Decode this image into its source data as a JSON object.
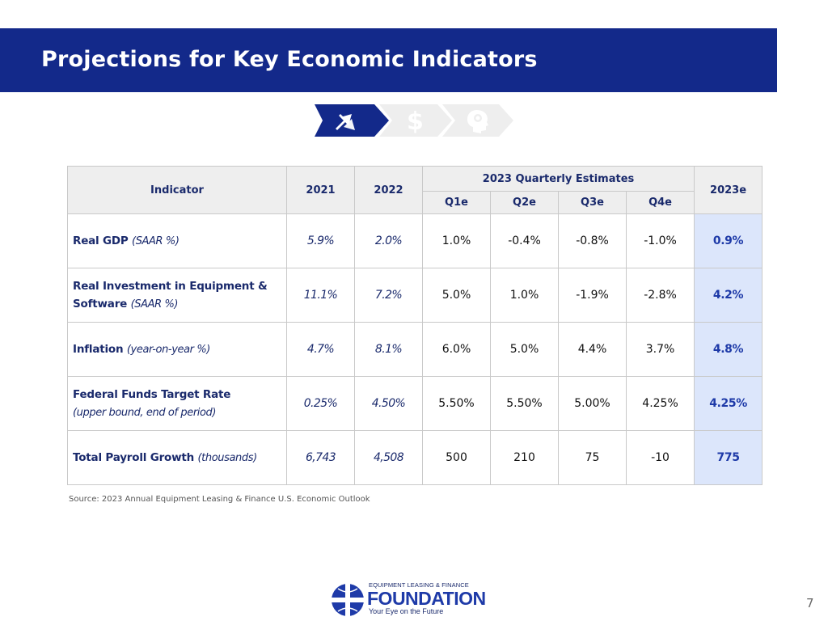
{
  "header": {
    "title": "Projections for Key Economic Indicators"
  },
  "chevrons": [
    {
      "icon": "trend-arrows-icon",
      "active": true
    },
    {
      "icon": "dollar-icon",
      "active": false
    },
    {
      "icon": "head-gear-icon",
      "active": false
    }
  ],
  "table": {
    "headers": {
      "indicator": "Indicator",
      "y2021": "2021",
      "y2022": "2022",
      "quarterly_group": "2023 Quarterly Estimates",
      "q1": "Q1e",
      "q2": "Q2e",
      "q3": "Q3e",
      "q4": "Q4e",
      "y2023": "2023e"
    },
    "rows": [
      {
        "name": "Real GDP",
        "unit": "(SAAR %)",
        "v2021": "5.9%",
        "v2022": "2.0%",
        "q1": "1.0%",
        "q2": "-0.4%",
        "q3": "-0.8%",
        "q4": "-1.0%",
        "v2023": "0.9%"
      },
      {
        "name": "Real Investment in Equipment & Software",
        "unit": "(SAAR %)",
        "v2021": "11.1%",
        "v2022": "7.2%",
        "q1": "5.0%",
        "q2": "1.0%",
        "q3": "-1.9%",
        "q4": "-2.8%",
        "v2023": "4.2%"
      },
      {
        "name": "Inflation",
        "unit": "(year-on-year %)",
        "v2021": "4.7%",
        "v2022": "8.1%",
        "q1": "6.0%",
        "q2": "5.0%",
        "q3": "4.4%",
        "q4": "3.7%",
        "v2023": "4.8%"
      },
      {
        "name": "Federal Funds Target Rate",
        "unit": "(upper bound, end of period)",
        "v2021": "0.25%",
        "v2022": "4.50%",
        "q1": "5.50%",
        "q2": "5.50%",
        "q3": "5.00%",
        "q4": "4.25%",
        "v2023": "4.25%"
      },
      {
        "name": "Total Payroll Growth",
        "unit": "(thousands)",
        "v2021": "6,743",
        "v2022": "4,508",
        "q1": "500",
        "q2": "210",
        "q3": "75",
        "q4": "-10",
        "v2023": "775"
      }
    ]
  },
  "source": "Source:  2023 Annual Equipment Leasing & Finance U.S. Economic Outlook",
  "logo": {
    "top_text": "EQUIPMENT LEASING & FINANCE",
    "main_text": "FOUNDATION",
    "tagline": "Your Eye on the Future"
  },
  "page_number": "7",
  "colors": {
    "header_bg": "#13298a",
    "accent_blue": "#1e3aa8",
    "est_col_bg": "#dce6fb",
    "grey_chevron": "#eeeeee"
  }
}
